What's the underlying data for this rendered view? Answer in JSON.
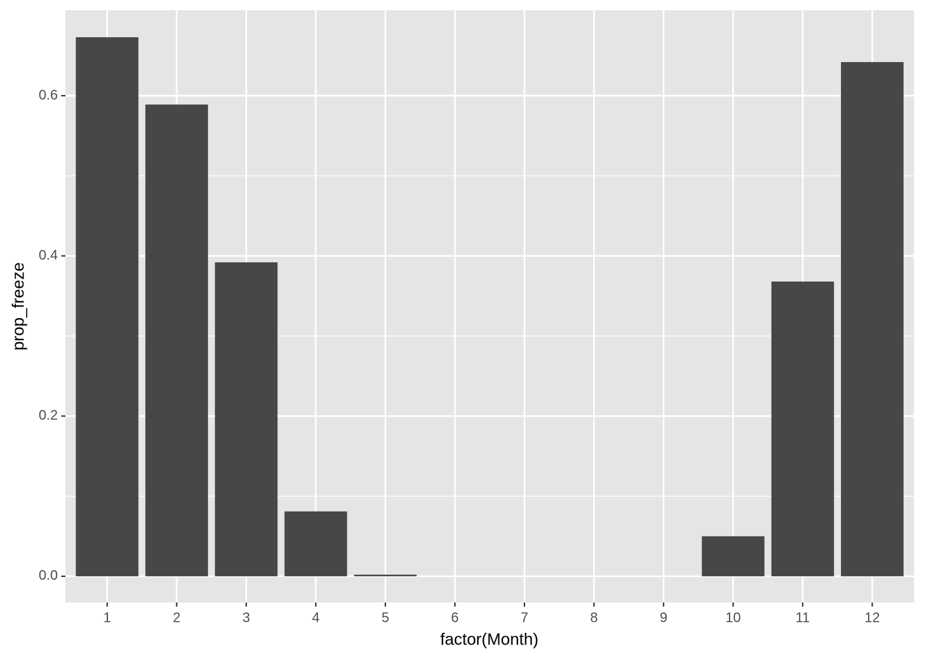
{
  "chart_data": {
    "type": "bar",
    "x_label": "factor(Month)",
    "y_label": "prop_freeze",
    "categories": [
      "1",
      "2",
      "3",
      "4",
      "5",
      "6",
      "7",
      "8",
      "9",
      "10",
      "11",
      "12"
    ],
    "values": [
      0.673,
      0.589,
      0.392,
      0.081,
      0.002,
      0,
      0,
      0,
      0,
      0.05,
      0.368,
      0.642
    ],
    "color": "#474747",
    "ylim": [
      -0.0327,
      0.7066
    ],
    "yticks": [
      {
        "value": 0,
        "label": "0.0"
      },
      {
        "value": 0.2,
        "label": "0.2"
      },
      {
        "value": 0.4,
        "label": "0.4"
      },
      {
        "value": 0.6,
        "label": "0.6"
      }
    ],
    "yminorticks": [
      0.1,
      0.3,
      0.5
    ],
    "grid": true
  }
}
